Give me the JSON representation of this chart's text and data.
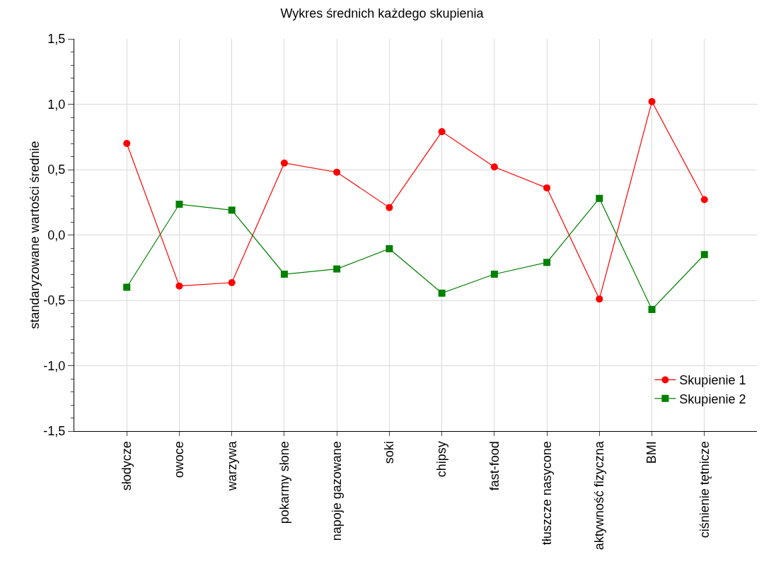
{
  "chart_data": {
    "type": "line",
    "title": "Wykres średnich każdego skupienia",
    "ylabel": "standaryzowane wartości średnie",
    "categories": [
      "słodycze",
      "owoce",
      "warzywa",
      "pokarmy słone",
      "napoje gazowane",
      "soki",
      "chipsy",
      "fast-food",
      "tłuszcze nasycone",
      "aktywność fizyczna",
      "BMI",
      "ciśnienie tętnicze"
    ],
    "series": [
      {
        "name": "Skupienie 1",
        "color": "#ff0000",
        "marker": "circle",
        "values": [
          0.7,
          -0.39,
          -0.365,
          0.55,
          0.48,
          0.21,
          0.79,
          0.52,
          0.36,
          -0.49,
          1.02,
          0.27
        ]
      },
      {
        "name": "Skupienie 2",
        "color": "#008000",
        "marker": "square",
        "values": [
          -0.4,
          0.235,
          0.19,
          -0.3,
          -0.26,
          -0.105,
          -0.445,
          -0.3,
          -0.21,
          0.28,
          -0.57,
          -0.15
        ]
      }
    ],
    "ylim": [
      -1.5,
      1.5
    ],
    "yticks": [
      {
        "value": -1.5,
        "label": "-1,5"
      },
      {
        "value": -1,
        "label": "-1,0"
      },
      {
        "value": -0.5,
        "label": "-0,5"
      },
      {
        "value": 0,
        "label": "0,0"
      },
      {
        "value": 0.5,
        "label": "0,5"
      },
      {
        "value": 1,
        "label": "1,0"
      },
      {
        "value": 1.5,
        "label": "1,5"
      }
    ],
    "grid": true,
    "legend": "bottom right",
    "line_style": "solid"
  }
}
